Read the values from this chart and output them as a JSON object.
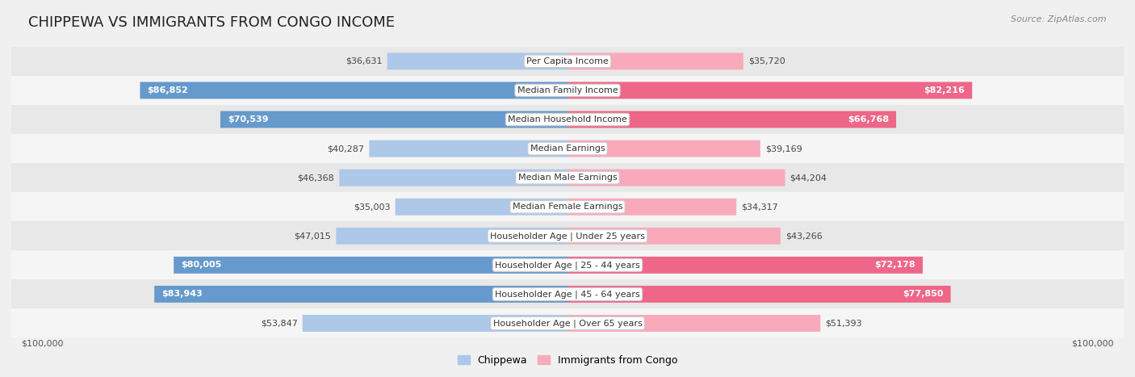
{
  "title": "CHIPPEWA VS IMMIGRANTS FROM CONGO INCOME",
  "source": "Source: ZipAtlas.com",
  "categories": [
    "Per Capita Income",
    "Median Family Income",
    "Median Household Income",
    "Median Earnings",
    "Median Male Earnings",
    "Median Female Earnings",
    "Householder Age | Under 25 years",
    "Householder Age | 25 - 44 years",
    "Householder Age | 45 - 64 years",
    "Householder Age | Over 65 years"
  ],
  "chippewa_values": [
    36631,
    86852,
    70539,
    40287,
    46368,
    35003,
    47015,
    80005,
    83943,
    53847
  ],
  "congo_values": [
    35720,
    82216,
    66768,
    39169,
    44204,
    34317,
    43266,
    72178,
    77850,
    51393
  ],
  "chippewa_color_light": "#adc8e8",
  "chippewa_color_dark": "#6699cc",
  "congo_color_light": "#f8aabb",
  "congo_color_dark": "#ee6688",
  "white_label_threshold": 55000,
  "max_value": 100000,
  "xlabel_left": "$100,000",
  "xlabel_right": "$100,000",
  "legend_chippewa": "Chippewa",
  "legend_congo": "Immigrants from Congo",
  "background_color": "#f0f0f0",
  "row_colors": [
    "#e8e8e8",
    "#f5f5f5"
  ],
  "title_fontsize": 13,
  "label_fontsize": 8,
  "value_fontsize": 8,
  "axis_fontsize": 8
}
